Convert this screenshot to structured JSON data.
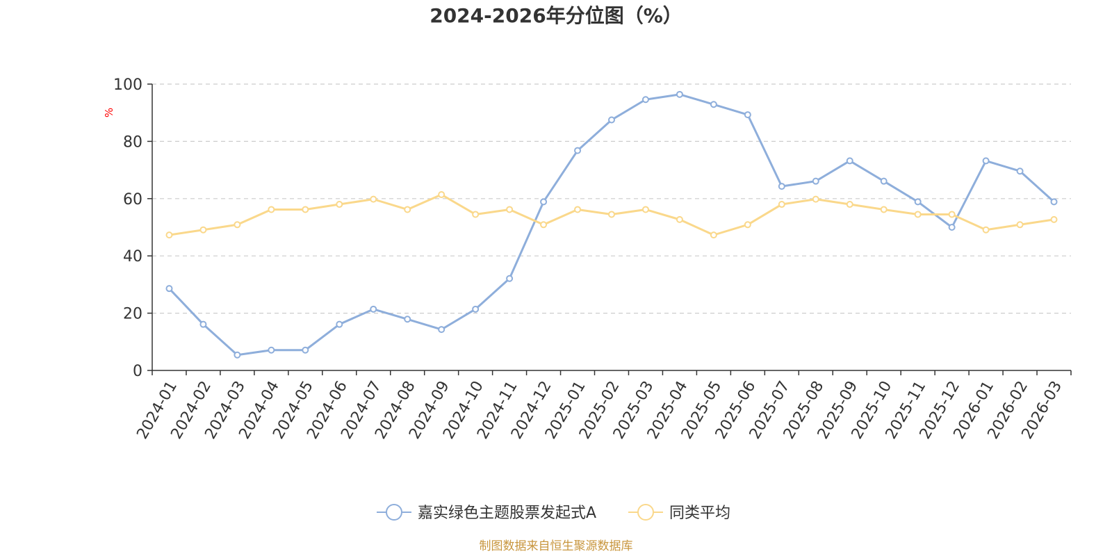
{
  "chart_data": {
    "type": "line",
    "title": "2024-2026年分位图（%）",
    "xlabel": "",
    "ylabel": "%",
    "ylim": [
      0,
      100
    ],
    "yticks": [
      0,
      20,
      40,
      60,
      80,
      100
    ],
    "grid": true,
    "legend_position": "bottom-center",
    "categories": [
      "2024-01",
      "2024-02",
      "2024-03",
      "2024-04",
      "2024-05",
      "2024-06",
      "2024-07",
      "2024-08",
      "2024-09",
      "2024-10",
      "2024-11",
      "2024-12",
      "2025-01",
      "2025-02",
      "2025-03",
      "2025-04",
      "2025-05",
      "2025-06",
      "2025-07",
      "2025-08",
      "2025-09",
      "2025-10",
      "2025-11",
      "2025-12",
      "2026-01",
      "2026-02",
      "2026-03"
    ],
    "series": [
      {
        "name": "嘉实绿色主题股票发起式A",
        "color": "#8eaedb",
        "values": [
          28.6,
          16.1,
          5.4,
          7.1,
          7.1,
          16.1,
          21.4,
          17.9,
          14.3,
          21.4,
          32.1,
          58.9,
          76.8,
          87.5,
          94.6,
          96.4,
          92.9,
          89.3,
          64.3,
          66.1,
          73.2,
          66.1,
          58.9,
          50.0,
          73.2,
          69.6,
          58.9
        ]
      },
      {
        "name": "同类平均",
        "color": "#fad88b",
        "values": [
          47.3,
          49.1,
          50.9,
          56.2,
          56.2,
          58.0,
          59.8,
          56.2,
          61.4,
          54.5,
          56.2,
          50.9,
          56.2,
          54.5,
          56.2,
          52.7,
          47.3,
          50.9,
          58.0,
          59.8,
          58.0,
          56.2,
          54.5,
          54.5,
          49.1,
          50.9,
          52.7
        ]
      }
    ],
    "source": "制图数据来自恒生聚源数据库"
  }
}
